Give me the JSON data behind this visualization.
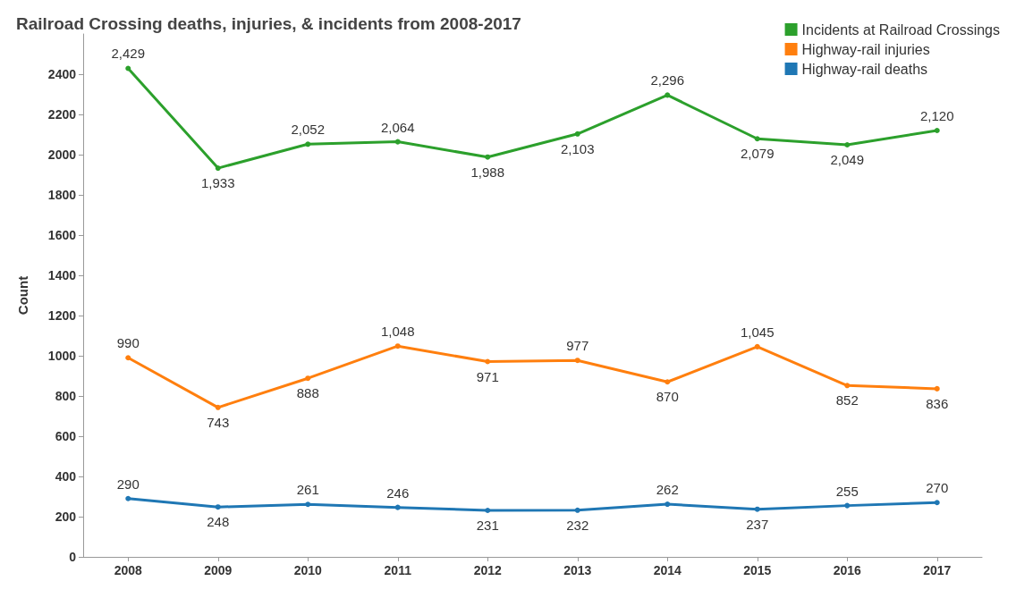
{
  "chart_data": {
    "type": "line",
    "title": "Railroad Crossing deaths, injuries, & incidents from 2008-2017",
    "ylabel": "Count",
    "categories": [
      "2008",
      "2009",
      "2010",
      "2011",
      "2012",
      "2013",
      "2014",
      "2015",
      "2016",
      "2017"
    ],
    "series": [
      {
        "name": "Incidents at Railroad Crossings",
        "color": "#2ca02c",
        "values": [
          2429,
          1933,
          2052,
          2064,
          1988,
          2103,
          2296,
          2079,
          2049,
          2120
        ],
        "value_labels": [
          "2,429",
          "1,933",
          "2,052",
          "2,064",
          "1,988",
          "2,103",
          "2,296",
          "2,079",
          "2,049",
          "2,120"
        ]
      },
      {
        "name": "Highway-rail injuries",
        "color": "#ff7f0e",
        "values": [
          990,
          743,
          888,
          1048,
          971,
          977,
          870,
          1045,
          852,
          836
        ],
        "value_labels": [
          "990",
          "743",
          "888",
          "1,048",
          "971",
          "977",
          "870",
          "1,045",
          "852",
          "836"
        ]
      },
      {
        "name": "Highway-rail deaths",
        "color": "#1f77b4",
        "values": [
          290,
          248,
          261,
          246,
          231,
          232,
          262,
          237,
          255,
          270
        ],
        "value_labels": [
          "290",
          "248",
          "261",
          "246",
          "231",
          "232",
          "262",
          "237",
          "255",
          "270"
        ]
      }
    ],
    "ylim": [
      0,
      2600
    ],
    "yticks": [
      0,
      200,
      400,
      600,
      800,
      1000,
      1200,
      1400,
      1600,
      1800,
      2000,
      2200,
      2400
    ],
    "grid": false,
    "legend": "top right",
    "marker": "circle",
    "line_style": "solid"
  }
}
